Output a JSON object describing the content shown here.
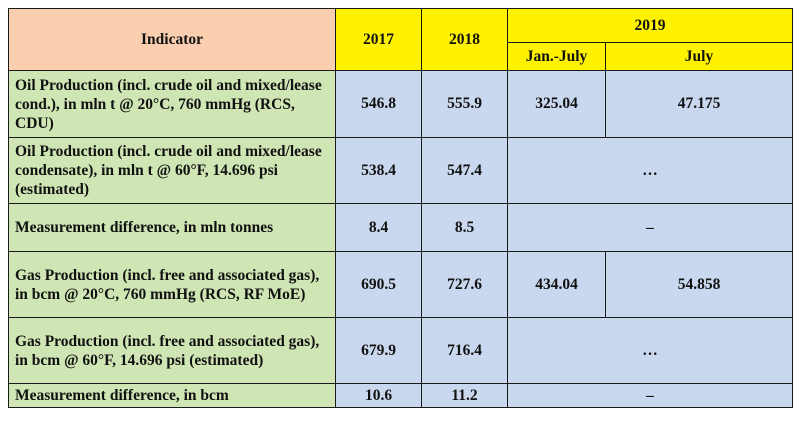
{
  "table": {
    "header": {
      "indicator": "Indicator",
      "y2017": "2017",
      "y2018": "2018",
      "y2019": "2019",
      "jan_july": "Jan.-July",
      "july": "July"
    },
    "rows": [
      {
        "indicator": "Oil Production (incl. crude oil and mixed/lease cond.), in mln t @ 20°C, 760 mmHg (RCS, CDU)",
        "v2017": "546.8",
        "v2018": "555.9",
        "jan_july": "325.04",
        "july": "47.175"
      },
      {
        "indicator": "Oil Production (incl. crude oil and mixed/lease condensate), in mln t @ 60°F, 14.696 psi (estimated)",
        "v2017": "538.4",
        "v2018": "547.4",
        "y2019": "…"
      },
      {
        "indicator": "Measurement difference, in mln tonnes",
        "v2017": "8.4",
        "v2018": "8.5",
        "y2019": "–"
      },
      {
        "indicator": "Gas Production (incl. free and associated gas), in bcm @ 20°C, 760 mmHg (RCS, RF MoE)",
        "v2017": "690.5",
        "v2018": "727.6",
        "jan_july": "434.04",
        "july": "54.858"
      },
      {
        "indicator": "Gas Production (incl. free and associated gas), in bcm @ 60°F, 14.696 psi (estimated)",
        "v2017": "679.9",
        "v2018": "716.4",
        "y2019": "…"
      },
      {
        "indicator": "Measurement difference, in bcm",
        "v2017": "10.6",
        "v2018": "11.2",
        "y2019": "–"
      }
    ]
  },
  "colors": {
    "header_indicator": "#f9cfb0",
    "header_years": "#fef200",
    "indicator_cells": "#cfe6b4",
    "value_cells": "#c9d8ef"
  }
}
